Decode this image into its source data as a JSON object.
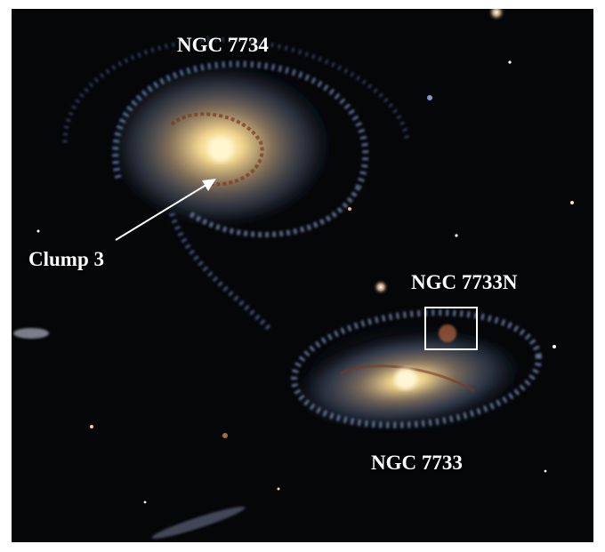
{
  "image": {
    "labels": {
      "ngc7734": "NGC 7734",
      "clump3": "Clump 3",
      "ngc7733n": "NGC 7733N",
      "ngc7733": "NGC 7733"
    },
    "colors": {
      "background": "#050608",
      "annotation": "#ffffff",
      "arm_blue": "#8fb4ff",
      "core_yellow": "#fff2c0",
      "dust_brown": "#7a3a1e"
    }
  }
}
